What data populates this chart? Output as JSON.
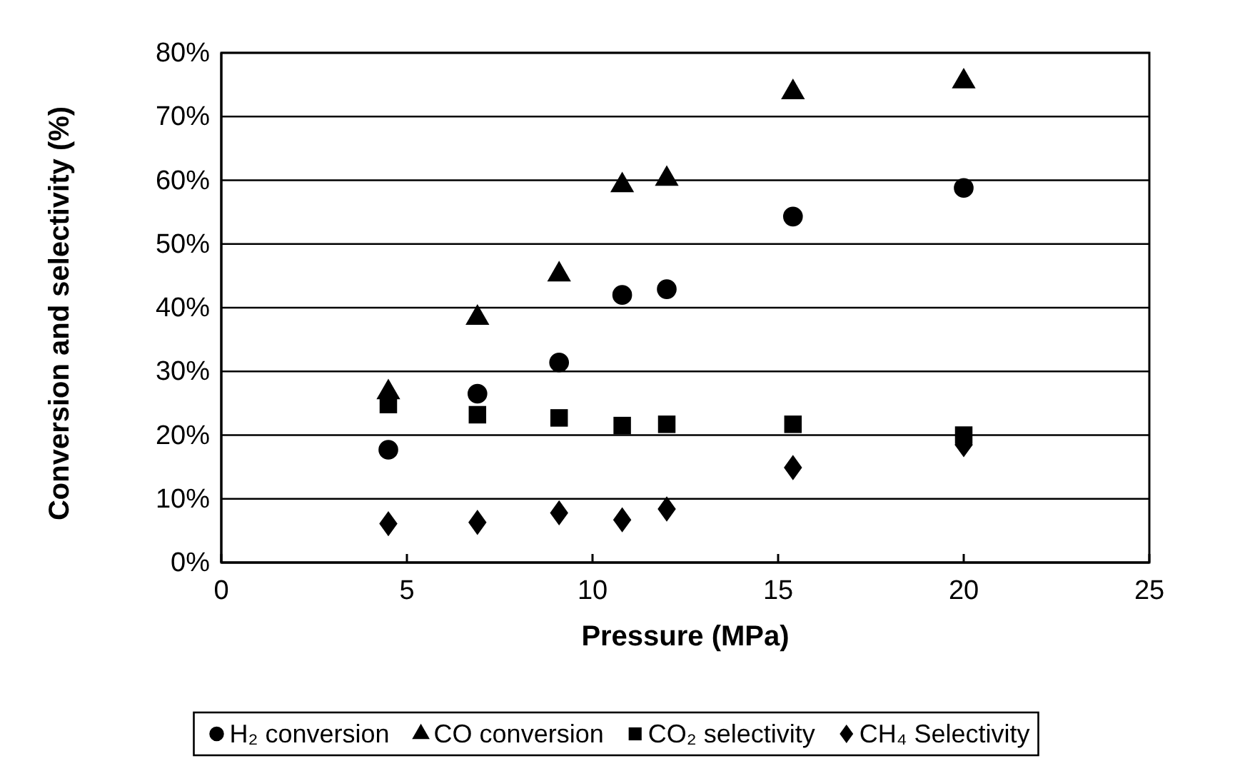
{
  "chart_data": {
    "type": "scatter",
    "xlabel": "Pressure (MPa)",
    "ylabel": "Conversion and selectivity  (%)",
    "x": [
      4.5,
      6.9,
      9.1,
      10.8,
      12,
      15.4,
      20
    ],
    "series": [
      {
        "name": "H₂ conversion",
        "color": "#000000",
        "marker": "circle",
        "values": [
          17.7,
          26.5,
          31.4,
          42,
          42.9,
          54.3,
          58.8
        ]
      },
      {
        "name": "CO conversion",
        "color": "#000000",
        "marker": "triangle",
        "values": [
          26.7,
          38.4,
          45.2,
          59.2,
          60.2,
          73.8,
          75.5
        ]
      },
      {
        "name": "CO₂ selectivity",
        "color": "#000000",
        "marker": "square",
        "values": [
          24.8,
          23.2,
          22.7,
          21.5,
          21.7,
          21.7,
          20
        ]
      },
      {
        "name": "CH₄ Selectivity",
        "color": "#000000",
        "marker": "diamond",
        "values": [
          6.1,
          6.3,
          7.8,
          6.7,
          8.4,
          14.9,
          18.5
        ]
      }
    ],
    "xlim": [
      0,
      25
    ],
    "xticks": [
      0,
      5,
      10,
      15,
      20,
      25
    ],
    "ylim": [
      0,
      80
    ],
    "yticks": [
      {
        "value": 0,
        "label": "0%"
      },
      {
        "value": 10,
        "label": "10%"
      },
      {
        "value": 20,
        "label": "20%"
      },
      {
        "value": 30,
        "label": "30%"
      },
      {
        "value": 40,
        "label": "40%"
      },
      {
        "value": 50,
        "label": "50%"
      },
      {
        "value": 60,
        "label": "60%"
      },
      {
        "value": 70,
        "label": "70%"
      },
      {
        "value": 80,
        "label": "80%"
      }
    ],
    "grid": "y",
    "legend": "bottom"
  }
}
